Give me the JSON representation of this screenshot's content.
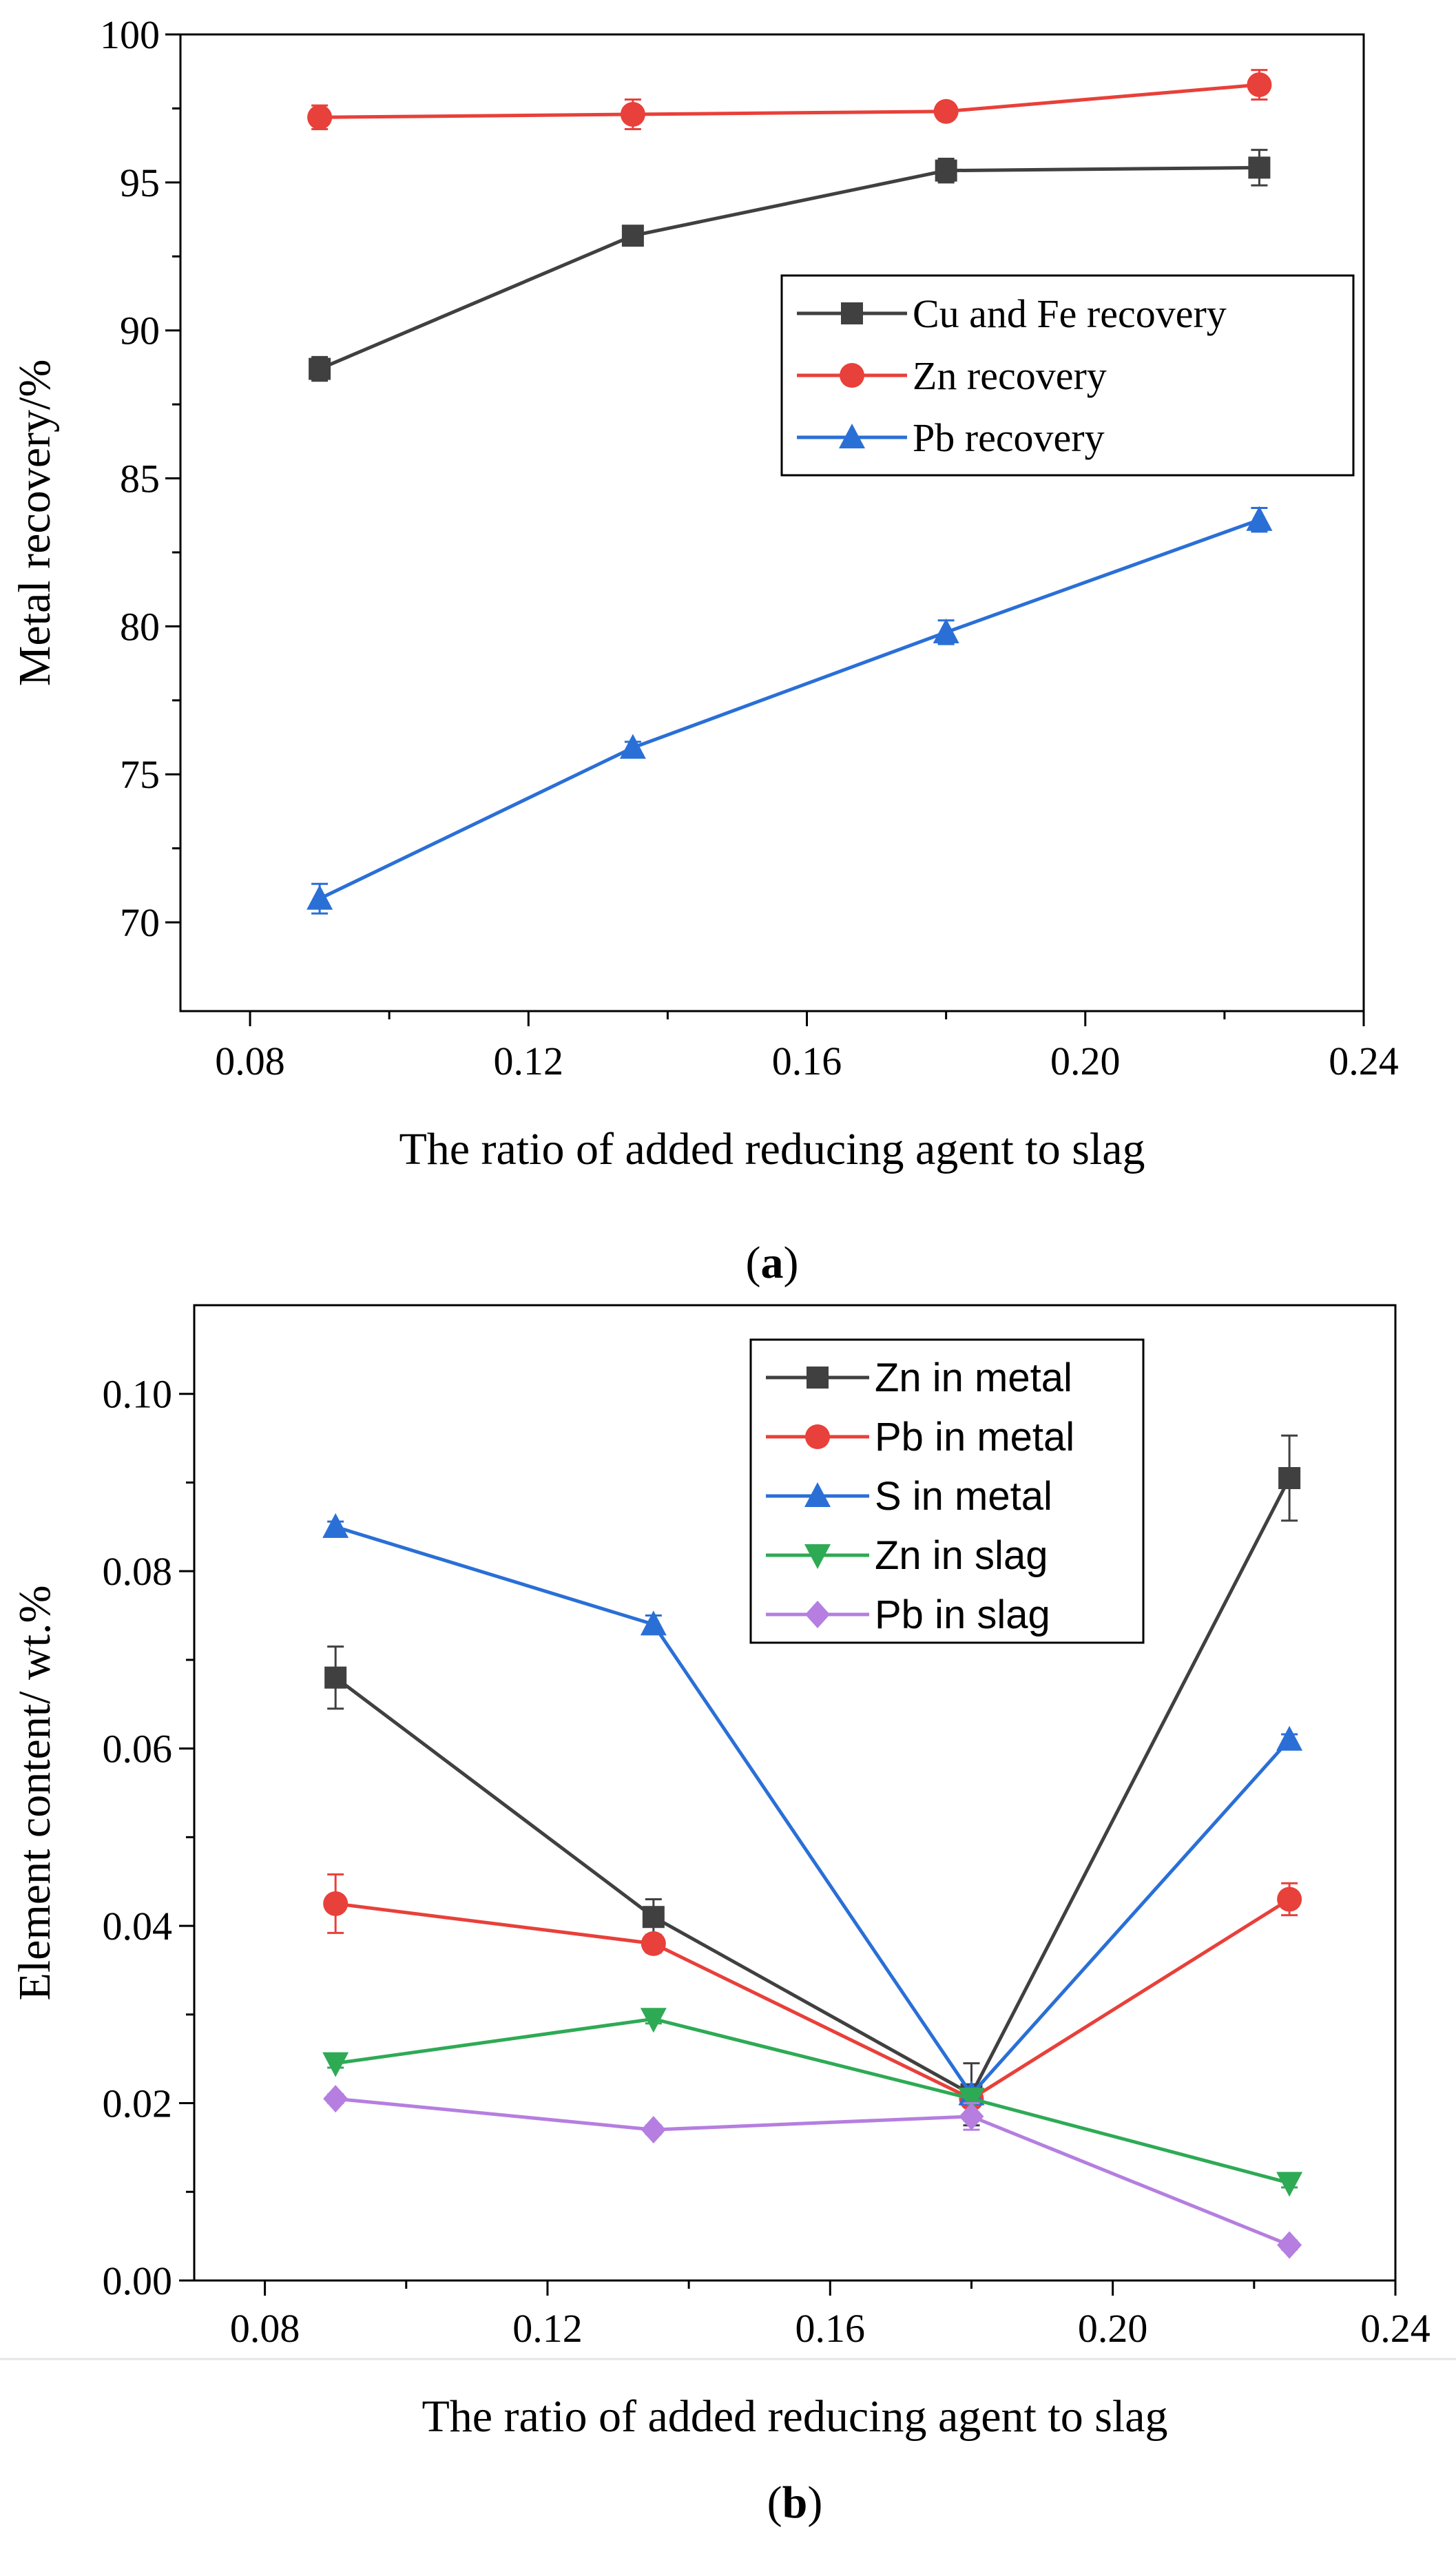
{
  "chart_data": [
    {
      "panel": "a",
      "panel_label": "a",
      "type": "line",
      "title": "",
      "xlabel": "The ratio of added reducing agent to slag",
      "ylabel": "Metal recovery/%",
      "xlim": [
        0.07,
        0.24
      ],
      "ylim": [
        67,
        100
      ],
      "xticks": [
        0.08,
        0.12,
        0.16,
        0.2,
        0.24
      ],
      "xtick_labels": [
        "0.08",
        "0.12",
        "0.16",
        "0.20",
        "0.24"
      ],
      "yticks": [
        70,
        75,
        80,
        85,
        90,
        95,
        100
      ],
      "ytick_labels": [
        "70",
        "75",
        "80",
        "85",
        "90",
        "95",
        "100"
      ],
      "legend_position": "upper-right",
      "x": [
        0.09,
        0.135,
        0.18,
        0.225
      ],
      "series": [
        {
          "name": "Cu and Fe recovery",
          "color": "#404040",
          "marker": "square",
          "values": [
            88.7,
            93.2,
            95.4,
            95.5
          ],
          "errors": [
            0.4,
            0.3,
            0.4,
            0.6
          ]
        },
        {
          "name": "Zn recovery",
          "color": "#e8403a",
          "marker": "circle",
          "values": [
            97.2,
            97.3,
            97.4,
            98.3
          ],
          "errors": [
            0.4,
            0.5,
            0.2,
            0.5
          ]
        },
        {
          "name": "Pb recovery",
          "color": "#2a6fd6",
          "marker": "triangle-up",
          "values": [
            70.8,
            75.9,
            79.8,
            83.6
          ],
          "errors": [
            0.5,
            0.2,
            0.4,
            0.4
          ]
        }
      ]
    },
    {
      "panel": "b",
      "panel_label": "b",
      "type": "line",
      "title": "",
      "xlabel": "The ratio of added reducing agent to slag",
      "ylabel": "Element content/ wt.%",
      "xlim": [
        0.07,
        0.24
      ],
      "ylim": [
        0,
        0.11
      ],
      "xticks": [
        0.08,
        0.12,
        0.16,
        0.2,
        0.24
      ],
      "xtick_labels": [
        "0.08",
        "0.12",
        "0.16",
        "0.20",
        "0.24"
      ],
      "yticks": [
        0,
        0.02,
        0.04,
        0.06,
        0.08,
        0.1
      ],
      "ytick_labels": [
        "0.00",
        "0.02",
        "0.04",
        "0.06",
        "0.08",
        "0.10"
      ],
      "legend_position": "upper-center",
      "x": [
        0.09,
        0.135,
        0.18,
        0.225
      ],
      "series": [
        {
          "name": "Zn in metal",
          "color": "#404040",
          "marker": "square",
          "values": [
            0.068,
            0.041,
            0.021,
            0.0905
          ],
          "errors": [
            0.0035,
            0.002,
            0.0035,
            0.0048
          ]
        },
        {
          "name": "Pb in metal",
          "color": "#e8403a",
          "marker": "circle",
          "values": [
            0.0425,
            0.038,
            0.0205,
            0.043
          ],
          "errors": [
            0.0033,
            0.001,
            0.0008,
            0.0018
          ]
        },
        {
          "name": "S in metal",
          "color": "#2a6fd6",
          "marker": "triangle-up",
          "values": [
            0.085,
            0.074,
            0.021,
            0.061
          ],
          "errors": [
            0.0006,
            0.001,
            0.0005,
            0.0006
          ]
        },
        {
          "name": "Zn in slag",
          "color": "#2eaa55",
          "marker": "triangle-down",
          "values": [
            0.0245,
            0.0295,
            0.0205,
            0.011
          ],
          "errors": [
            0.0005,
            0.0005,
            0.0005,
            0.0005
          ]
        },
        {
          "name": "Pb in slag",
          "color": "#b57ee0",
          "marker": "diamond",
          "values": [
            0.0205,
            0.017,
            0.0185,
            0.004
          ],
          "errors": [
            0.0005,
            0.0005,
            0.0015,
            0.0005
          ]
        }
      ]
    }
  ]
}
